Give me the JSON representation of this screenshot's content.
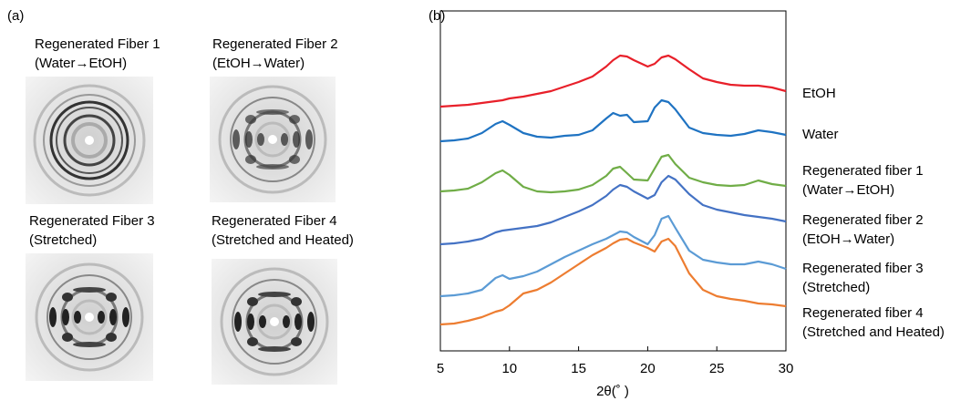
{
  "panel_a": {
    "label": "(a)",
    "images": [
      {
        "title": "Regenerated Fiber 1\n(Water→EtOH)"
      },
      {
        "title": "Regenerated Fiber 2\n(EtOH→Water)"
      },
      {
        "title": "Regenerated Fiber 3\n(Stretched)"
      },
      {
        "title": "Regenerated Fiber 4\n(Stretched and Heated)"
      }
    ]
  },
  "chart_data": {
    "type": "line",
    "panel_label": "(b)",
    "x_label": "2θ(˚ )",
    "x": [
      5,
      6,
      7,
      8,
      9,
      9.5,
      10,
      11,
      12,
      13,
      14,
      15,
      16,
      17,
      17.5,
      18,
      18.5,
      19,
      20,
      20.5,
      21,
      21.5,
      22,
      23,
      24,
      25,
      26,
      27,
      28,
      29,
      30
    ],
    "xlim": [
      5,
      30
    ],
    "xticks": [
      5,
      10,
      15,
      20,
      25,
      30
    ],
    "ylim": [
      0,
      373
    ],
    "series": [
      {
        "name": "EtOH",
        "color": "#e8202a",
        "values": [
          268,
          269,
          270,
          272,
          274,
          275,
          277,
          279,
          282,
          285,
          290,
          295,
          301,
          312,
          319,
          324,
          323,
          319,
          312,
          315,
          322,
          324,
          320,
          309,
          299,
          295,
          292,
          291,
          291,
          289,
          285
        ]
      },
      {
        "name": "Water",
        "color": "#1f73c2",
        "values": [
          230,
          231,
          233,
          239,
          249,
          252,
          248,
          239,
          235,
          234,
          236,
          237,
          242,
          255,
          261,
          258,
          259,
          251,
          252,
          267,
          275,
          273,
          265,
          245,
          239,
          237,
          236,
          238,
          242,
          240,
          237
        ]
      },
      {
        "name": "Regenerated fiber 1\n(Water→EtOH)",
        "color": "#70ad47",
        "values": [
          175,
          176,
          178,
          185,
          195,
          198,
          193,
          180,
          175,
          174,
          175,
          177,
          182,
          192,
          200,
          202,
          195,
          188,
          187,
          200,
          213,
          215,
          205,
          190,
          185,
          182,
          181,
          182,
          187,
          183,
          181
        ]
      },
      {
        "name": "Regenerated fiber 2\n(EtOH→Water)",
        "color": "#4472c4",
        "values": [
          117,
          118,
          120,
          123,
          130,
          132,
          133,
          135,
          137,
          141,
          147,
          153,
          160,
          170,
          177,
          182,
          180,
          175,
          167,
          171,
          185,
          192,
          188,
          172,
          160,
          155,
          152,
          149,
          147,
          145,
          142
        ]
      },
      {
        "name": "Regenerated fiber 3\n(Stretched)",
        "color": "#5b9bd5",
        "values": [
          60,
          61,
          63,
          67,
          80,
          83,
          79,
          82,
          87,
          95,
          103,
          110,
          117,
          123,
          127,
          131,
          130,
          125,
          117,
          127,
          145,
          148,
          135,
          110,
          100,
          97,
          95,
          95,
          98,
          95,
          90
        ]
      },
      {
        "name": "Regenerated fiber 4\n(Stretched and Heated)",
        "color": "#ed7d31",
        "values": [
          29,
          30,
          33,
          37,
          43,
          45,
          50,
          63,
          67,
          75,
          85,
          95,
          105,
          113,
          118,
          122,
          123,
          119,
          113,
          109,
          120,
          123,
          115,
          85,
          67,
          60,
          57,
          55,
          52,
          51,
          49
        ]
      }
    ]
  }
}
